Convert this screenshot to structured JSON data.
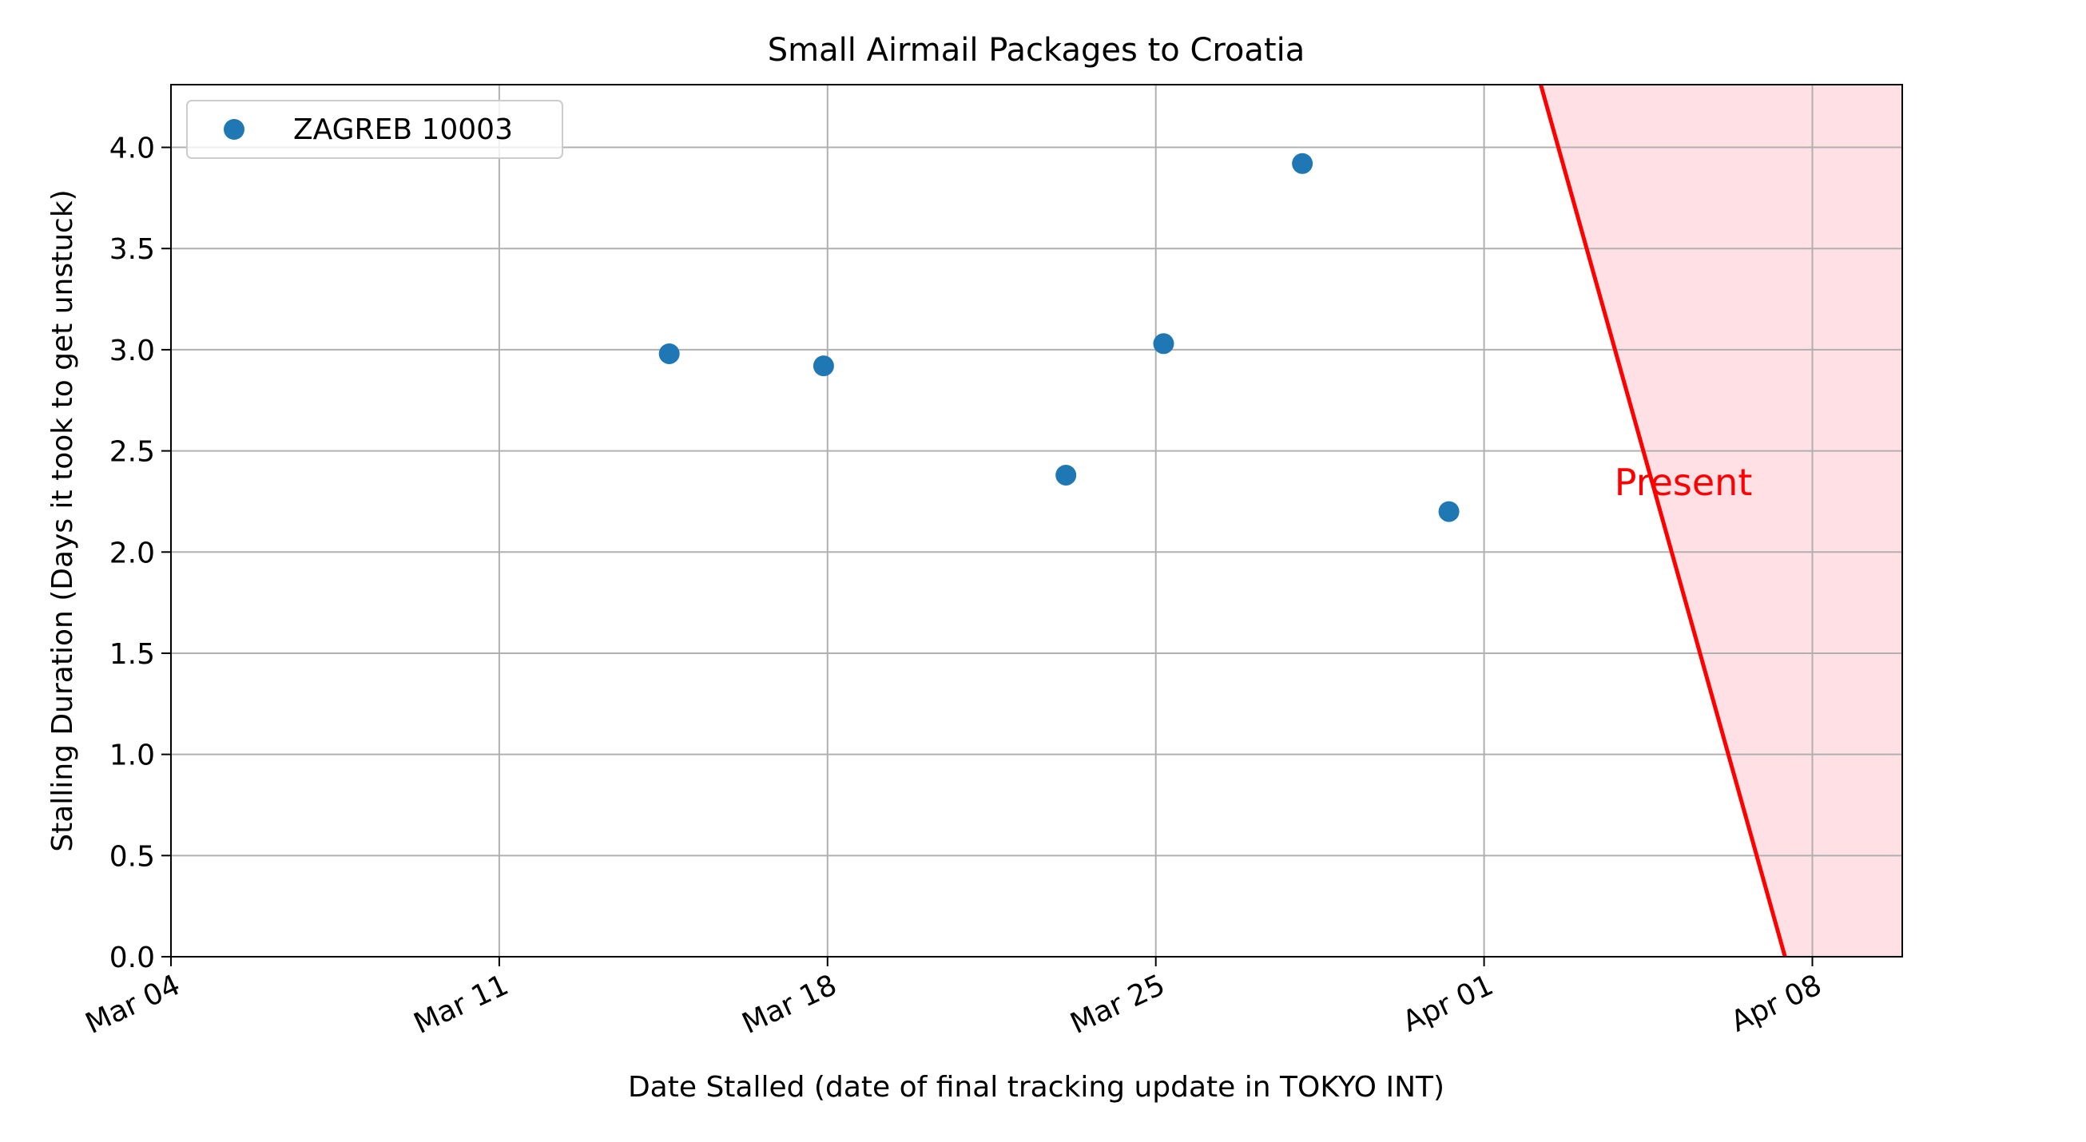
{
  "chart_data": {
    "type": "scatter",
    "title": "Small Airmail Packages to Croatia",
    "xlabel": "Date Stalled (date of final tracking update in TOKYO INT)",
    "ylabel": "Stalling Duration (Days it took to get unstuck)",
    "x_ticks": [
      "Mar 04",
      "Mar 11",
      "Mar 18",
      "Mar 25",
      "Apr 01",
      "Apr 08"
    ],
    "x_tick_dates": [
      "2024-03-04",
      "2024-03-11",
      "2024-03-18",
      "2024-03-25",
      "2024-04-01",
      "2024-04-08"
    ],
    "xlim": [
      "2024-03-04",
      "2024-04-09T22:00"
    ],
    "y_ticks": [
      "0.0",
      "0.5",
      "1.0",
      "1.5",
      "2.0",
      "2.5",
      "3.0",
      "3.5",
      "4.0"
    ],
    "ylim": [
      0,
      4.31
    ],
    "grid": true,
    "legend_position": "upper-left",
    "series": [
      {
        "name": "ZAGREB 10003",
        "color": "#1f77b4",
        "points": [
          {
            "x": "2024-03-14T15:00",
            "y": 2.98
          },
          {
            "x": "2024-03-17T22:00",
            "y": 2.92
          },
          {
            "x": "2024-03-23T02:00",
            "y": 2.38
          },
          {
            "x": "2024-03-25T04:00",
            "y": 3.03
          },
          {
            "x": "2024-03-28T03:00",
            "y": 3.92
          },
          {
            "x": "2024-03-31T06:00",
            "y": 2.2
          }
        ]
      }
    ],
    "present_region": {
      "label": "Present",
      "color": "#ff0000",
      "fill_color": "#ffe0e4",
      "line_top": {
        "x": "2024-04-02T05:00",
        "y": 4.31
      },
      "line_bottom": {
        "x": "2024-04-07T10:00",
        "y": 0
      },
      "label_position": {
        "x": "2024-04-05T06:00",
        "y": 2.34
      }
    }
  }
}
